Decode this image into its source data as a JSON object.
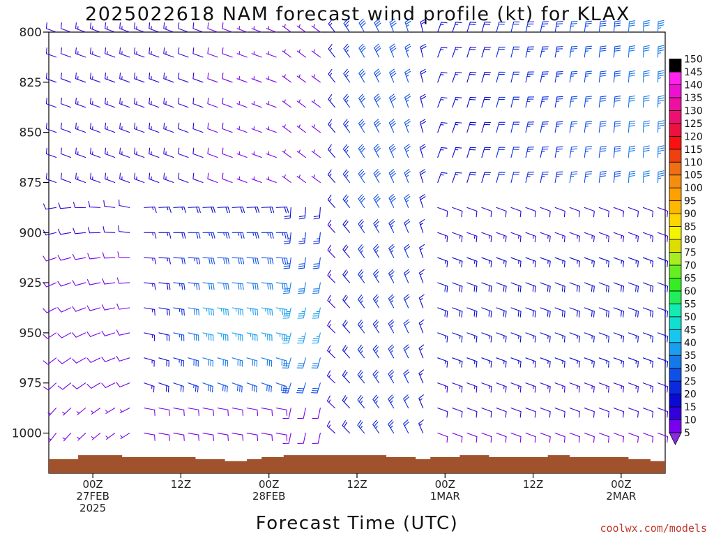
{
  "chart_data": {
    "type": "wind-barb-profile",
    "title": "2025022618 NAM forecast wind profile (kt) for KLAX",
    "xlabel": "Forecast Time (UTC)",
    "ylabel": "",
    "y_ticks": [
      800,
      825,
      850,
      875,
      900,
      925,
      950,
      975,
      1000
    ],
    "y_range_hpa": [
      800,
      1020
    ],
    "x_ticks": [
      {
        "hour": 6,
        "lines": [
          "00Z",
          "27FEB",
          "2025"
        ]
      },
      {
        "hour": 18,
        "lines": [
          "12Z"
        ]
      },
      {
        "hour": 30,
        "lines": [
          "00Z",
          "28FEB"
        ]
      },
      {
        "hour": 42,
        "lines": [
          "12Z"
        ]
      },
      {
        "hour": 54,
        "lines": [
          "00Z",
          "1MAR"
        ]
      },
      {
        "hour": 66,
        "lines": [
          "12Z"
        ]
      },
      {
        "hour": 78,
        "lines": [
          "00Z",
          "2MAR"
        ]
      }
    ],
    "x_range_hours": [
      0,
      84
    ],
    "time_step_hours": 1,
    "pressure_levels_hpa": [
      800,
      812.5,
      825,
      837.5,
      850,
      862.5,
      875,
      887.5,
      900,
      912.5,
      925,
      937.5,
      950,
      962.5,
      975,
      987.5,
      1000,
      1012.5
    ],
    "wind_units": "kt",
    "colorbar_levels": [
      5,
      10,
      15,
      20,
      25,
      30,
      35,
      40,
      45,
      50,
      55,
      60,
      65,
      70,
      75,
      80,
      85,
      90,
      95,
      100,
      105,
      110,
      115,
      120,
      125,
      130,
      135,
      140,
      145,
      150
    ],
    "colorbar_colors": [
      "#8a2be2",
      "#7700ee",
      "#3300dd",
      "#0a0ad2",
      "#0a2ae0",
      "#0f50ea",
      "#1679ea",
      "#1a9ff0",
      "#17c7f0",
      "#10e0d0",
      "#12ecb0",
      "#22ee5a",
      "#33ee22",
      "#66ee22",
      "#a6ee22",
      "#dddd00",
      "#f4f400",
      "#ffd500",
      "#ffb800",
      "#ffa000",
      "#f58d10",
      "#ef7010",
      "#ee4010",
      "#ff1010",
      "#ee1040",
      "#ee1070",
      "#ee10a0",
      "#ee10d0",
      "#ff22ee",
      "#000000"
    ],
    "terrain_color": "#a0522d",
    "surface_pressure_hpa": [
      1013,
      1013,
      1013,
      1013,
      1011,
      1011,
      1011,
      1011,
      1011,
      1011,
      1012,
      1012,
      1012,
      1012,
      1012,
      1012,
      1012,
      1012,
      1012,
      1012,
      1013,
      1013,
      1013,
      1013,
      1014,
      1014,
      1014,
      1013,
      1013,
      1012,
      1012,
      1012,
      1011,
      1011,
      1011,
      1011,
      1011,
      1011,
      1011,
      1011,
      1011,
      1011,
      1011,
      1011,
      1011,
      1011,
      1012,
      1012,
      1012,
      1012,
      1013,
      1013,
      1012,
      1012,
      1012,
      1012,
      1011,
      1011,
      1011,
      1011,
      1012,
      1012,
      1012,
      1012,
      1012,
      1012,
      1012,
      1012,
      1011,
      1011,
      1011,
      1012,
      1012,
      1012,
      1012,
      1012,
      1012,
      1012,
      1012,
      1013,
      1013,
      1013,
      1014,
      1014,
      1014
    ],
    "wind_field_summary": [
      {
        "hours": [
          0,
          38
        ],
        "levels_hpa": [
          800,
          880
        ],
        "direction_deg": 290,
        "speed_kt": [
          8,
          15
        ]
      },
      {
        "hours": [
          14,
          42
        ],
        "levels_hpa": [
          890,
          970
        ],
        "direction_deg": 95,
        "speed_kt": [
          15,
          38
        ]
      },
      {
        "hours": [
          0,
          12
        ],
        "levels_hpa": [
          890,
          1010
        ],
        "direction_deg": 250,
        "speed_kt": [
          5,
          12
        ]
      },
      {
        "hours": [
          38,
          53
        ],
        "levels_hpa": [
          800,
          1000
        ],
        "direction_deg": 330,
        "speed_kt": [
          10,
          30
        ]
      },
      {
        "hours": [
          53,
          84
        ],
        "levels_hpa": [
          800,
          880
        ],
        "direction_deg": 10,
        "speed_kt": [
          15,
          35
        ]
      },
      {
        "hours": [
          53,
          84
        ],
        "levels_hpa": [
          890,
          1010
        ],
        "direction_deg": 110,
        "speed_kt": [
          10,
          22
        ]
      }
    ]
  },
  "credit": "coolwx.com/models"
}
